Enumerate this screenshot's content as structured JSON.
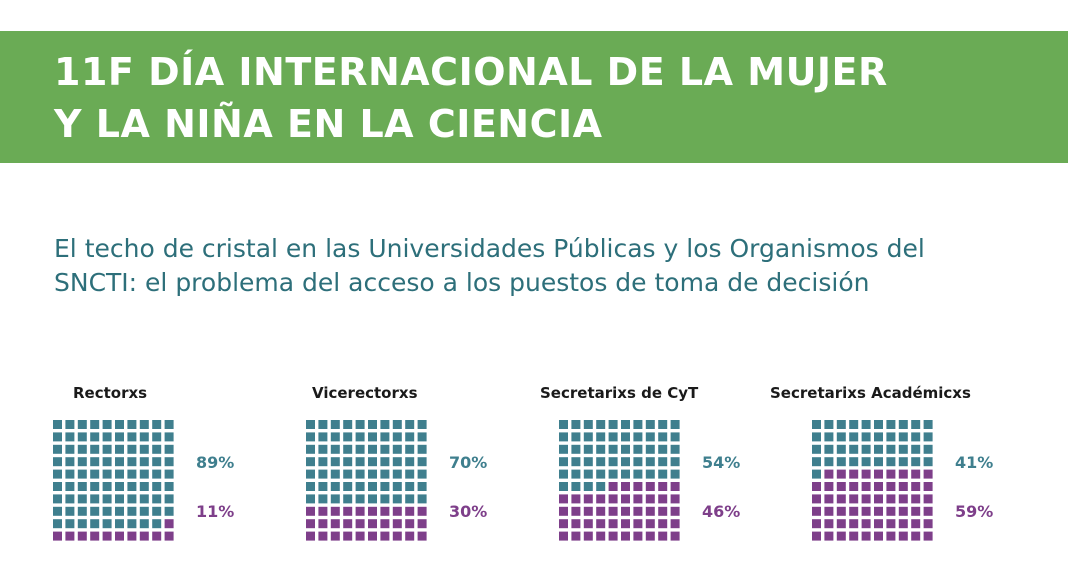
{
  "header": {
    "title_line1": "11F DÍA INTERNACIONAL DE LA MUJER",
    "title_line2": "Y LA NIÑA EN LA CIENCIA"
  },
  "subtitle": {
    "line1": "El techo de cristal en las Universidades Públicas y los Organismos del",
    "line2": "SNCTI: el problema del acceso a los puestos de toma de decisión"
  },
  "colors": {
    "banner": "#6aab55",
    "men": "#3f7f8e",
    "women": "#7e3f8a",
    "subtitle": "#2d6f7a"
  },
  "chart_data": [
    {
      "type": "waffle",
      "title": "Rectorxs",
      "values": [
        89,
        11
      ],
      "labels": [
        "89%",
        "11%"
      ]
    },
    {
      "type": "waffle",
      "title": "Vicerectorxs",
      "values": [
        70,
        30
      ],
      "labels": [
        "70%",
        "30%"
      ]
    },
    {
      "type": "waffle",
      "title": "Secretarixs de CyT",
      "values": [
        54,
        46
      ],
      "labels": [
        "54%",
        "46%"
      ]
    },
    {
      "type": "waffle",
      "title": "Secretarixs Académicxs",
      "values": [
        41,
        59
      ],
      "labels": [
        "41%",
        "59%"
      ]
    }
  ]
}
